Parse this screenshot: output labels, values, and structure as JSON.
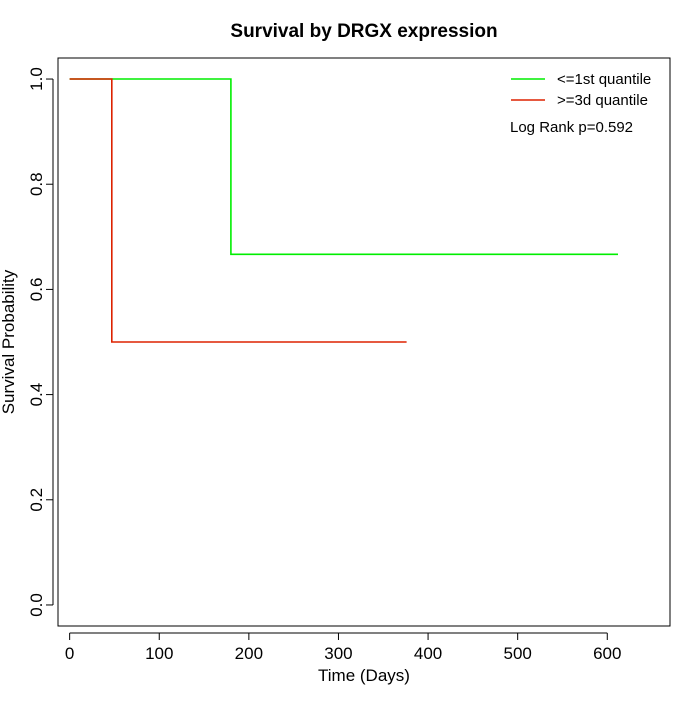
{
  "chart_data": {
    "type": "line",
    "step": true,
    "title": "Survival by DRGX expression",
    "xlabel": "Time (Days)",
    "ylabel": "Survival Probability",
    "xlim": [
      -13,
      670
    ],
    "ylim": [
      -0.04,
      1.04
    ],
    "xticks": [
      0,
      100,
      200,
      300,
      400,
      500,
      600
    ],
    "yticks": [
      0.0,
      0.2,
      0.4,
      0.6,
      0.8,
      1.0
    ],
    "xtick_labels": [
      "0",
      "100",
      "200",
      "300",
      "400",
      "500",
      "600"
    ],
    "ytick_labels": [
      "0.0",
      "0.2",
      "0.4",
      "0.6",
      "0.8",
      "1.0"
    ],
    "grid": false,
    "legend_position": "top-right",
    "series": [
      {
        "name": "<=1st quantile",
        "color": "#00ee00",
        "x": [
          0,
          180,
          180,
          612
        ],
        "y": [
          1.0,
          1.0,
          0.6667,
          0.6667
        ]
      },
      {
        "name": ">=3d quantile",
        "color": "#dd2200",
        "x": [
          0,
          47,
          47,
          376
        ],
        "y": [
          1.0,
          1.0,
          0.5,
          0.5
        ]
      }
    ],
    "annotations": [
      {
        "text": "Log Rank p=0.592"
      }
    ]
  }
}
